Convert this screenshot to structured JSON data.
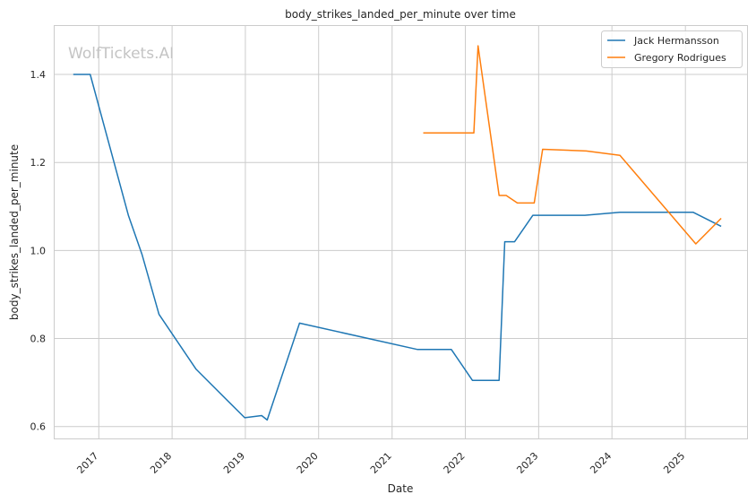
{
  "chart_data": {
    "type": "line",
    "title": "body_strikes_landed_per_minute over time",
    "xlabel": "Date",
    "ylabel": "body_strikes_landed_per_minute",
    "watermark": "WolfTickets.AI",
    "x_ticks": [
      "2017",
      "2018",
      "2019",
      "2020",
      "2021",
      "2022",
      "2023",
      "2024",
      "2025"
    ],
    "y_ticks": [
      "0.6",
      "0.8",
      "1.0",
      "1.2",
      "1.4"
    ],
    "xlim": [
      "2016-05-26",
      "2025-11-04"
    ],
    "ylim": [
      0.573,
      1.51
    ],
    "grid": true,
    "legend_position": "upper right",
    "series": [
      {
        "name": "Jack Hermansson",
        "color": "#1f77b4",
        "points": [
          [
            "2016-08-27",
            1.4
          ],
          [
            "2016-11-19",
            1.4
          ],
          [
            "2017-05-28",
            1.08
          ],
          [
            "2017-08-05",
            0.99
          ],
          [
            "2017-10-28",
            0.855
          ],
          [
            "2018-05-01",
            0.73
          ],
          [
            "2018-12-29",
            0.62
          ],
          [
            "2019-03-23",
            0.625
          ],
          [
            "2019-04-20",
            0.615
          ],
          [
            "2019-09-28",
            0.835
          ],
          [
            "2021-05-08",
            0.775
          ],
          [
            "2021-10-23",
            0.775
          ],
          [
            "2022-02-05",
            0.705
          ],
          [
            "2022-06-18",
            0.705
          ],
          [
            "2022-07-16",
            1.02
          ],
          [
            "2022-09-03",
            1.02
          ],
          [
            "2022-12-03",
            1.08
          ],
          [
            "2023-08-19",
            1.08
          ],
          [
            "2024-02-10",
            1.087
          ],
          [
            "2025-02-08",
            1.087
          ],
          [
            "2025-06-28",
            1.055
          ]
        ]
      },
      {
        "name": "Gregory Rodrigues",
        "color": "#ff7f0e",
        "points": [
          [
            "2021-06-05",
            1.267
          ],
          [
            "2022-02-12",
            1.267
          ],
          [
            "2022-03-05",
            1.465
          ],
          [
            "2022-06-18",
            1.125
          ],
          [
            "2022-07-23",
            1.125
          ],
          [
            "2022-09-17",
            1.108
          ],
          [
            "2022-12-10",
            1.108
          ],
          [
            "2023-01-21",
            1.23
          ],
          [
            "2023-08-26",
            1.226
          ],
          [
            "2024-02-10",
            1.216
          ],
          [
            "2025-02-22",
            1.015
          ],
          [
            "2025-06-28",
            1.073
          ]
        ]
      }
    ]
  }
}
